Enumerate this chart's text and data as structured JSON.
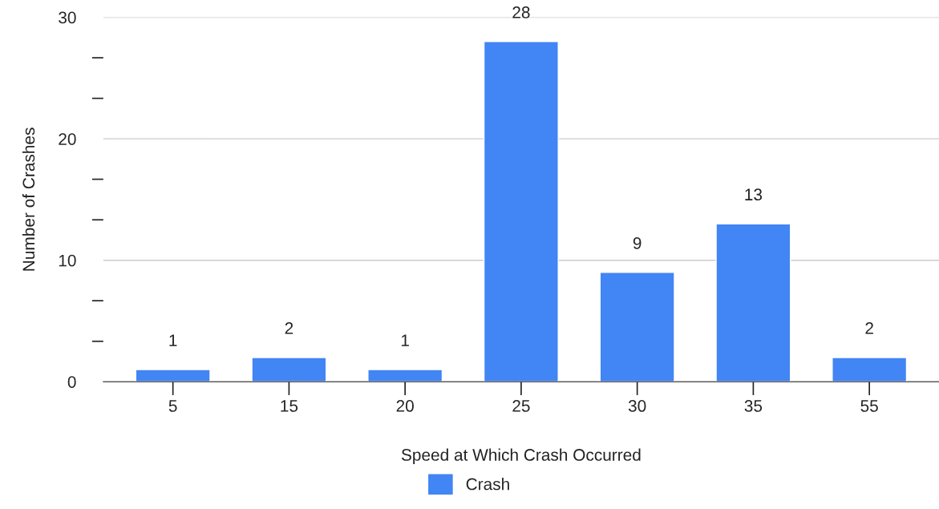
{
  "chart_data": {
    "type": "bar",
    "xlabel": "Speed at Which Crash Occurred",
    "ylabel": "Number of Crashes",
    "categories": [
      "5",
      "15",
      "20",
      "25",
      "30",
      "35",
      "55"
    ],
    "series": [
      {
        "name": "Crash",
        "color": "#4285f4",
        "values": [
          1,
          2,
          1,
          28,
          9,
          13,
          2
        ]
      }
    ],
    "ylim": [
      0,
      30
    ],
    "yticks": [
      0,
      {
        "value": 3.33,
        "label": null
      },
      {
        "value": 6.67,
        "label": null
      },
      10,
      {
        "value": 13.33,
        "label": null
      },
      {
        "value": 16.67,
        "label": null
      },
      20,
      {
        "value": 23.33,
        "label": null
      },
      {
        "value": 26.67,
        "label": null
      },
      30
    ],
    "grid": "y",
    "legend": "bottom",
    "data_labels": true
  }
}
